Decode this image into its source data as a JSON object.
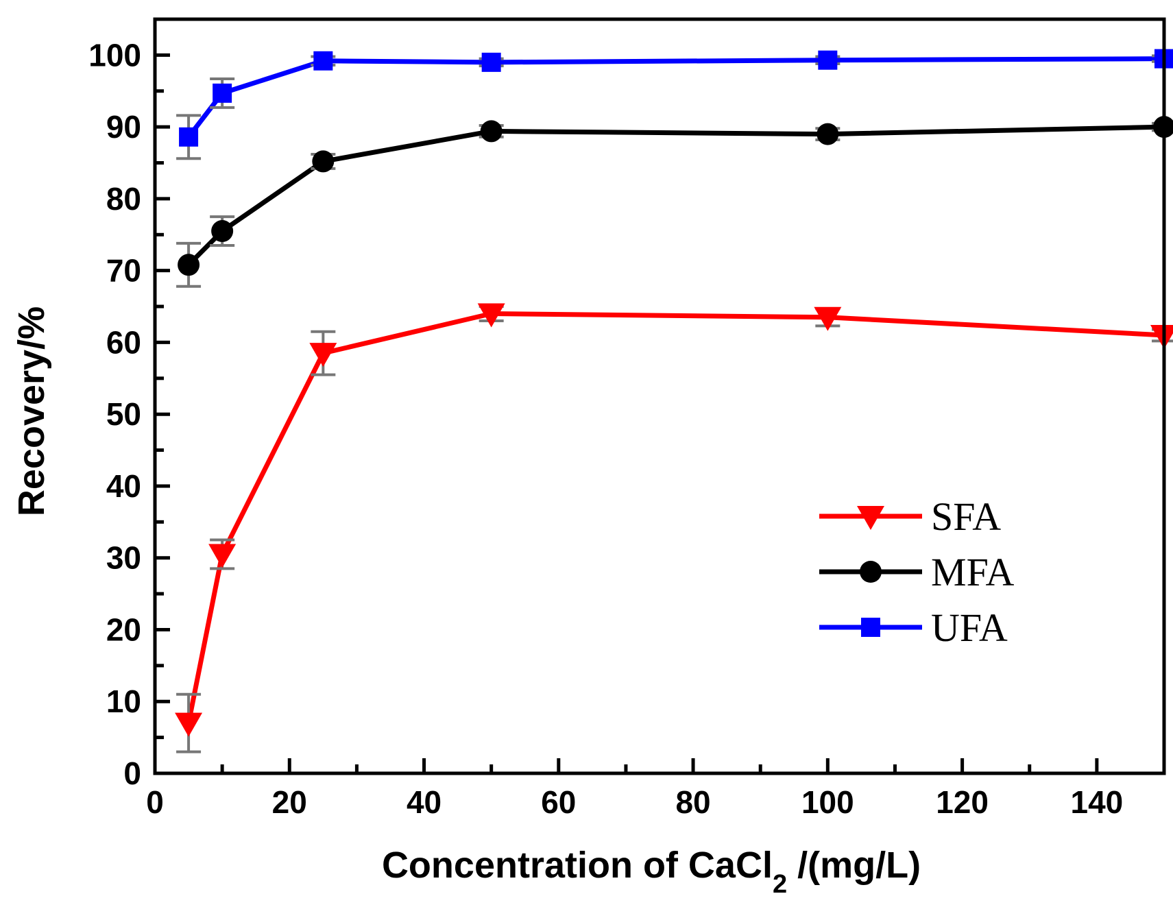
{
  "chart_data": {
    "type": "line",
    "title": "",
    "xlabel": {
      "main": "Concentration of CaCl",
      "subscript": "2",
      "suffix": " /(mg/L)"
    },
    "ylabel": "Recovery/%",
    "xlim": [
      0,
      150
    ],
    "ylim": [
      0,
      105
    ],
    "x_ticks": [
      0,
      20,
      40,
      60,
      80,
      100,
      120,
      140
    ],
    "x_tick_labels": [
      "0",
      "20",
      "40",
      "60",
      "80",
      "100",
      "120",
      "140"
    ],
    "y_ticks": [
      0,
      10,
      20,
      30,
      40,
      50,
      60,
      70,
      80,
      90,
      100
    ],
    "y_tick_labels": [
      "0",
      "10",
      "20",
      "30",
      "40",
      "50",
      "60",
      "70",
      "80",
      "90",
      "100"
    ],
    "grid": false,
    "legend_position": "lower-right",
    "x": [
      5,
      10,
      25,
      50,
      100,
      150
    ],
    "series": [
      {
        "name": "SFA",
        "color": "#ff0000",
        "marker": "triangle-down",
        "values": [
          7.0,
          30.5,
          58.5,
          64.0,
          63.5,
          61.0
        ],
        "errors": [
          4.0,
          2.0,
          3.0,
          1.0,
          1.2,
          0.8
        ]
      },
      {
        "name": "MFA",
        "color": "#000000",
        "marker": "circle",
        "values": [
          70.8,
          75.5,
          85.2,
          89.4,
          89.0,
          90.0
        ],
        "errors": [
          3.0,
          2.0,
          1.0,
          0.8,
          0.8,
          0.5
        ]
      },
      {
        "name": "UFA",
        "color": "#0000ff",
        "marker": "square",
        "values": [
          88.6,
          94.7,
          99.2,
          99.0,
          99.3,
          99.5
        ],
        "errors": [
          3.0,
          2.0,
          0.6,
          0.5,
          0.5,
          0.4
        ]
      }
    ]
  }
}
